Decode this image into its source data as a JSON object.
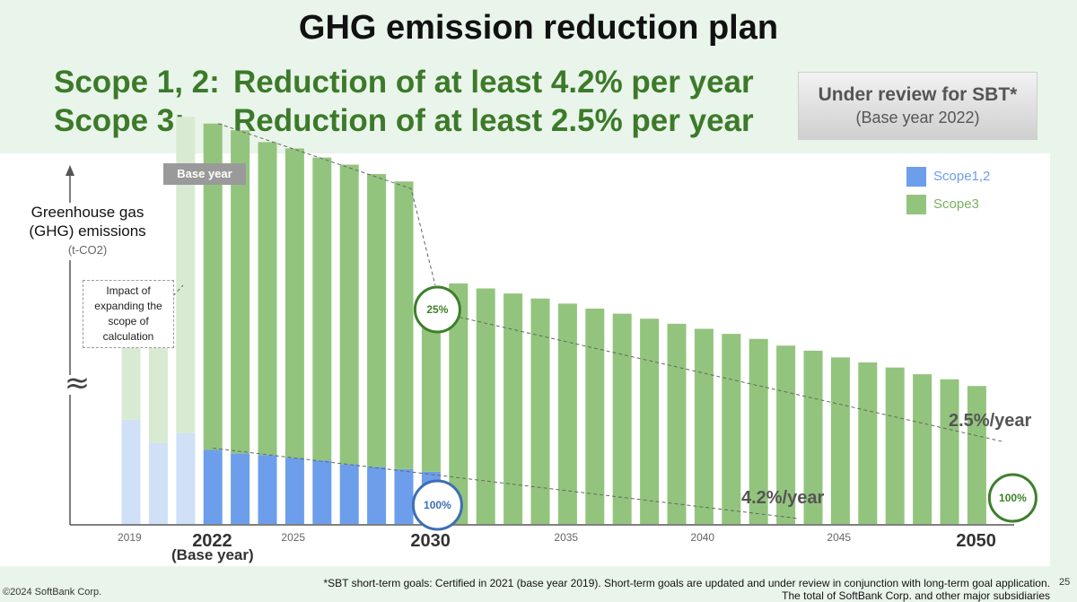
{
  "title": "GHG emission reduction plan",
  "scope_lines": [
    {
      "label": "Scope 1, 2:",
      "text": "Reduction of at least 4.2% per year"
    },
    {
      "label": "Scope 3:",
      "text": "Reduction of at least 2.5% per year"
    }
  ],
  "sbt_box": {
    "line1": "Under review for SBT*",
    "line2": "(Base year 2022)"
  },
  "y_label": {
    "line1": "Greenhouse gas",
    "line2": "(GHG) emissions",
    "unit": "(t-CO2)"
  },
  "impact_note": "Impact of expanding the scope of calculation",
  "base_year_tag": "Base year",
  "base_year_sub": "(Base year)",
  "axis_break_symbol": "≈",
  "rates": {
    "scope3": "2.5%/year",
    "scope12": "4.2%/year"
  },
  "footnotes": {
    "line1": "*SBT short-term goals: Certified in 2021 (base year 2019). Short-term goals are updated and under review in conjunction with long-term goal application.",
    "line2": "The total of SoftBank Corp. and other major subsidiaries"
  },
  "copyright": "©2024 SoftBank Corp.",
  "page_number": "25",
  "colors": {
    "scope12": "#6d9eeb",
    "scope3": "#93c47d",
    "scope12_pre": "#cfe0f7",
    "scope3_pre": "#d9ead3",
    "title_green": "#3c7a2a",
    "circle_green": "#3d7f2c",
    "circle_blue": "#3d6fb5"
  },
  "chart_data": {
    "type": "bar",
    "stacked": true,
    "title": "GHG emission reduction plan",
    "ylabel": "Greenhouse gas (GHG) emissions (t-CO2)",
    "y_axis_broken": true,
    "ylim": [
      0,
      100
    ],
    "categories": [
      "2019",
      "2020",
      "2021",
      "2022",
      "2023",
      "2024",
      "2025",
      "2026",
      "2027",
      "2028",
      "2029",
      "2030",
      "2031",
      "2032",
      "2033",
      "2034",
      "2035",
      "2036",
      "2037",
      "2038",
      "2039",
      "2040",
      "2041",
      "2042",
      "2043",
      "2044",
      "2045",
      "2046",
      "2047",
      "2048",
      "2049",
      "2050"
    ],
    "tick_labels": [
      {
        "year": "2019",
        "text": "2019",
        "emphasis": false
      },
      {
        "year": "2022",
        "text": "2022",
        "emphasis": true
      },
      {
        "year": "2025",
        "text": "2025",
        "emphasis": false
      },
      {
        "year": "2030",
        "text": "2030",
        "emphasis": true
      },
      {
        "year": "2035",
        "text": "2035",
        "emphasis": false
      },
      {
        "year": "2040",
        "text": "2040",
        "emphasis": false
      },
      {
        "year": "2045",
        "text": "2045",
        "emphasis": false
      },
      {
        "year": "2050",
        "text": "2050",
        "emphasis": true
      }
    ],
    "series": [
      {
        "name": "Scope1,2",
        "values": [
          31,
          24,
          27,
          22,
          21,
          20.5,
          19.6,
          18.9,
          17.8,
          17,
          16.3,
          15.5,
          0,
          0,
          0,
          0,
          0,
          0,
          0,
          0,
          0,
          0,
          0,
          0,
          0,
          0,
          0,
          0,
          0,
          0,
          0,
          0
        ]
      },
      {
        "name": "Scope3",
        "values": [
          31,
          33,
          94,
          97,
          96,
          93,
          92,
          90,
          89,
          87,
          85.5,
          50.5,
          71.5,
          70,
          68.5,
          67,
          65.5,
          64,
          62.5,
          61,
          59.5,
          58,
          56.5,
          55,
          53,
          51.5,
          49.5,
          48,
          46.5,
          44.5,
          43,
          41
        ]
      }
    ],
    "annotations": [
      {
        "year": "2030",
        "text": "25%",
        "color": "green"
      },
      {
        "year": "2030",
        "text": "100%",
        "color": "blue"
      },
      {
        "year": "2050",
        "text": "100%",
        "color": "green"
      }
    ],
    "legend": {
      "position": "top-right",
      "entries": [
        "Scope1,2",
        "Scope3"
      ]
    }
  }
}
